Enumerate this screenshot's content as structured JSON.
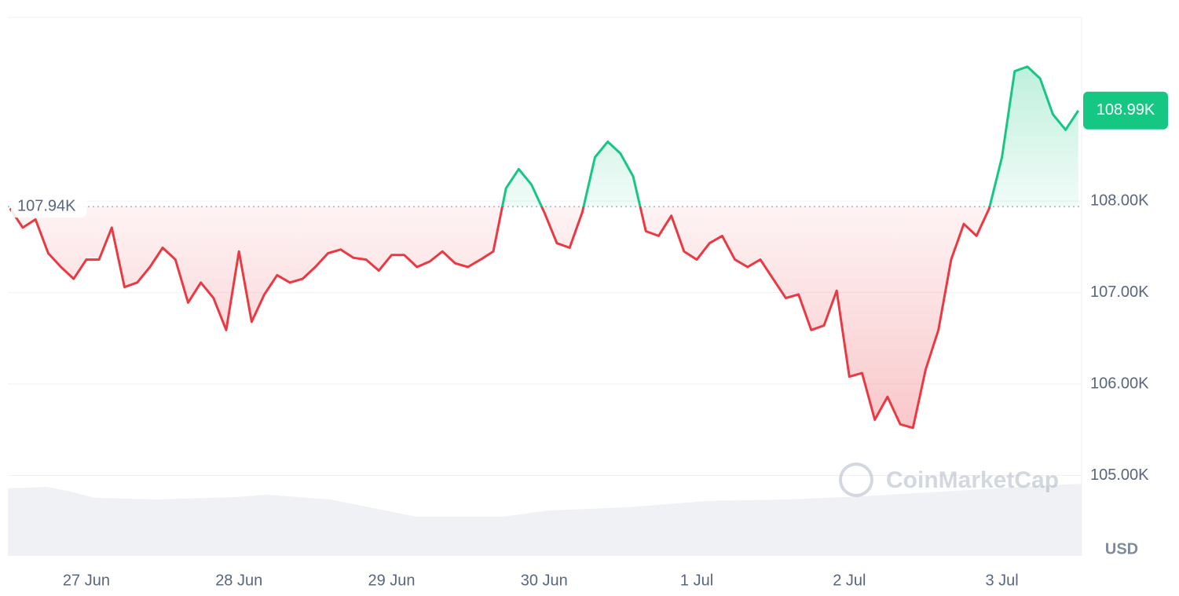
{
  "chart_data": {
    "type": "line",
    "categories": [
      null,
      null,
      null,
      null,
      null,
      null,
      "27 Jun",
      null,
      null,
      null,
      null,
      null,
      null,
      null,
      null,
      null,
      null,
      null,
      "28 Jun",
      null,
      null,
      null,
      null,
      null,
      null,
      null,
      null,
      null,
      null,
      null,
      "29 Jun",
      null,
      null,
      null,
      null,
      null,
      null,
      null,
      null,
      null,
      null,
      null,
      "30 Jun",
      null,
      null,
      null,
      null,
      null,
      null,
      null,
      null,
      null,
      null,
      null,
      "1 Jul",
      null,
      null,
      null,
      null,
      null,
      null,
      null,
      null,
      null,
      null,
      null,
      "2 Jul",
      null,
      null,
      null,
      null,
      null,
      null,
      null,
      null,
      null,
      null,
      null,
      "3 Jul",
      null,
      null,
      null,
      null,
      null,
      null
    ],
    "values": [
      107920,
      107710,
      107800,
      107430,
      107280,
      107150,
      107360,
      107360,
      107710,
      107060,
      107110,
      107280,
      107490,
      107360,
      106890,
      107110,
      106940,
      106590,
      107450,
      106680,
      106980,
      107190,
      107110,
      107150,
      107280,
      107430,
      107470,
      107380,
      107360,
      107240,
      107410,
      107410,
      107280,
      107340,
      107450,
      107320,
      107280,
      107360,
      107450,
      108140,
      108350,
      108180,
      107880,
      107540,
      107490,
      107880,
      108480,
      108650,
      108520,
      108270,
      107670,
      107620,
      107840,
      107450,
      107360,
      107540,
      107620,
      107360,
      107280,
      107360,
      107150,
      106940,
      106980,
      106590,
      106640,
      107020,
      106080,
      106120,
      105610,
      105860,
      105560,
      105520,
      106160,
      106590,
      107360,
      107750,
      107620,
      107920,
      108480,
      109420,
      109470,
      109340,
      108950,
      108780,
      108990
    ],
    "up_color": "#16c784",
    "down_color": "#ea3943",
    "ylim": [
      104120,
      110010
    ],
    "yticks": [
      {
        "value": 105000,
        "label": "105.00K"
      },
      {
        "value": 106000,
        "label": "106.00K"
      },
      {
        "value": 107000,
        "label": "107.00K"
      },
      {
        "value": 108000,
        "label": "108.00K"
      }
    ],
    "grid": true,
    "baseline": {
      "value": 107940,
      "label": "107.94K"
    },
    "last_price": {
      "value": 108990,
      "label": "108.99K"
    },
    "currency": "USD",
    "watermark": "CoinMarketCap"
  }
}
